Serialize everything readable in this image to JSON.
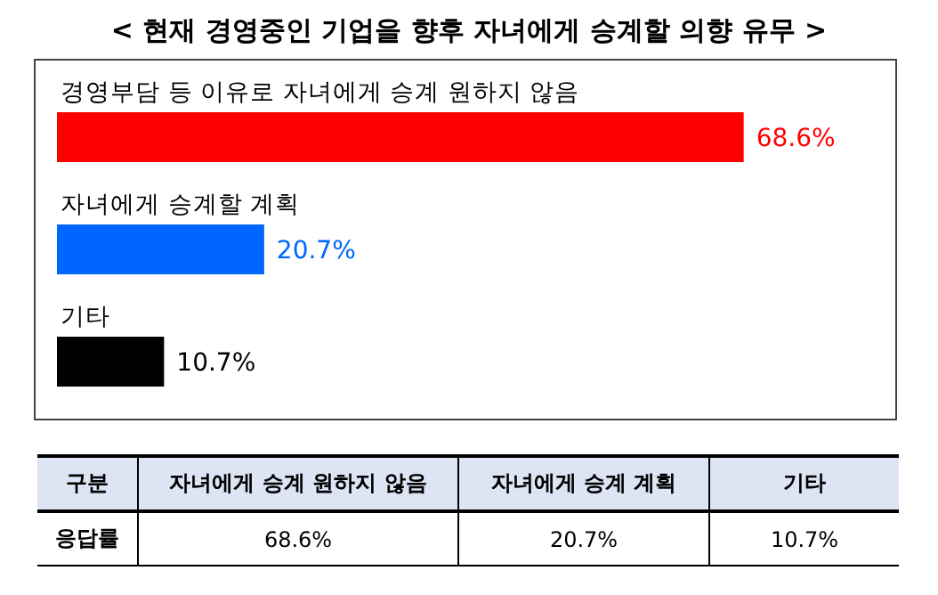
{
  "chart_data": {
    "type": "bar",
    "orientation": "horizontal",
    "title": "< 현재 경영중인 기업을 향후 자녀에게 승계할 의향 유무 >",
    "categories": [
      "경영부담 등 이유로 자녀에게 승계 원하지 않음",
      "자녀에게 승계할 계획",
      "기타"
    ],
    "values": [
      68.6,
      20.7,
      10.7
    ],
    "colors": [
      "#ff0000",
      "#0066ff",
      "#000000"
    ],
    "value_labels": [
      "68.6%",
      "20.7%",
      "10.7%"
    ],
    "annotations": [
      "구분",
      "자녀에게 승계 원하지 않음",
      "자녀에게 승계 계획",
      "기타",
      "응답률"
    ]
  }
}
